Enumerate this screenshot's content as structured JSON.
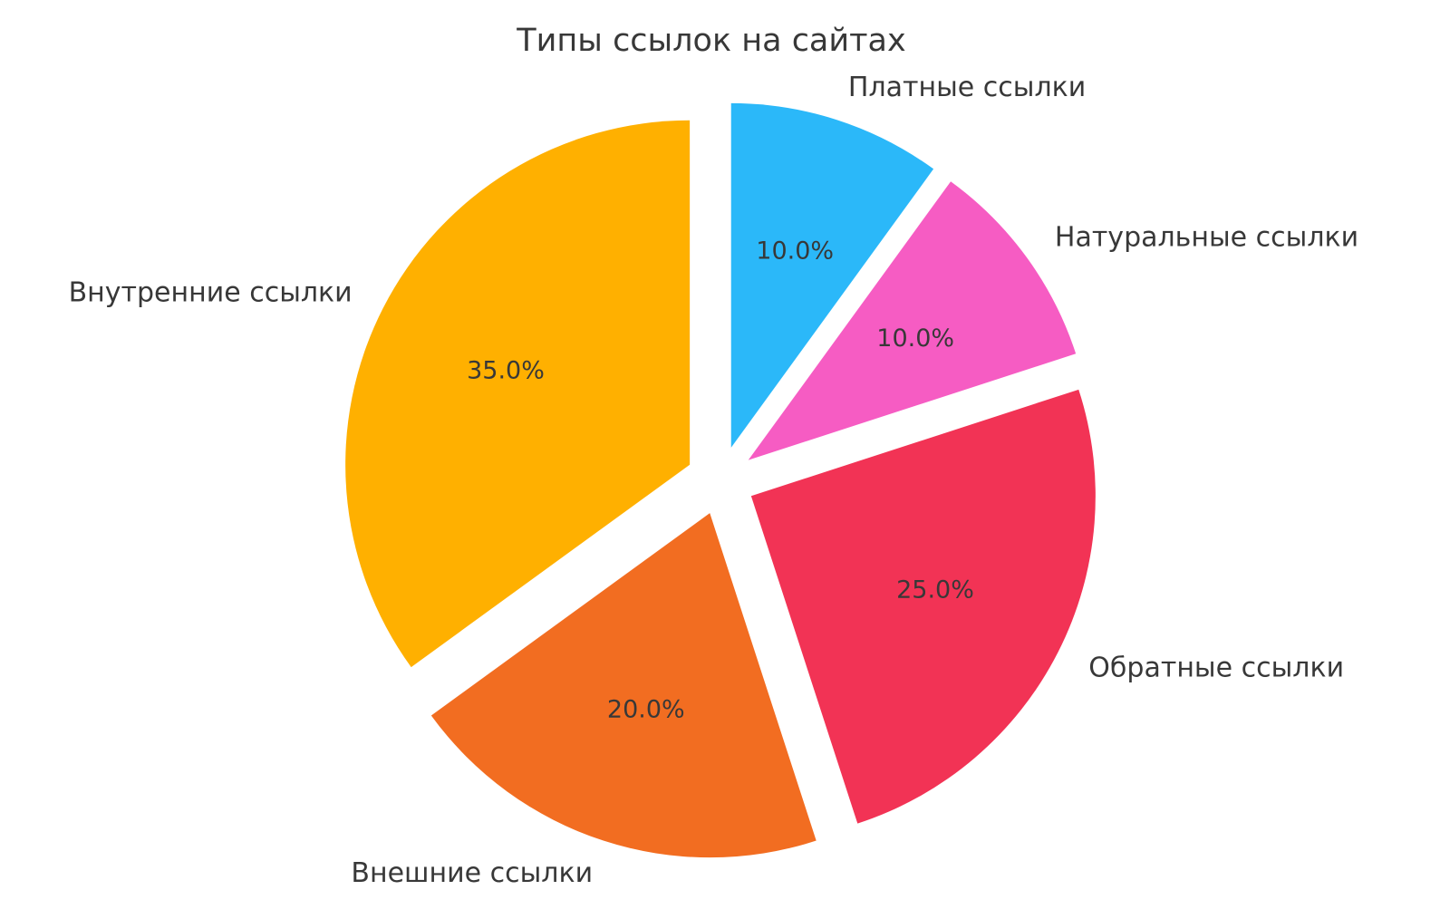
{
  "chart_data": {
    "type": "pie",
    "title": "Типы ссылок на сайтах",
    "labels": [
      "Платные ссылки",
      "Натуральные ссылки",
      "Обратные ссылки",
      "Внешние ссылки",
      "Внутренние ссылки"
    ],
    "values": [
      10,
      10,
      25,
      20,
      35
    ],
    "percent_labels": [
      "10.0%",
      "10.0%",
      "25.0%",
      "20.0%",
      "35.0%"
    ],
    "colors": [
      "#2BB8F9",
      "#F65CC3",
      "#F23355",
      "#F26D21",
      "#FFB000"
    ],
    "start_angle": 90,
    "counterclock": false,
    "explode": 0.1,
    "label_distance": 1.1,
    "pct_distance": 0.6,
    "legend": "none",
    "grid": "off",
    "text_color": "#383838",
    "background": "#FFFFFF"
  }
}
